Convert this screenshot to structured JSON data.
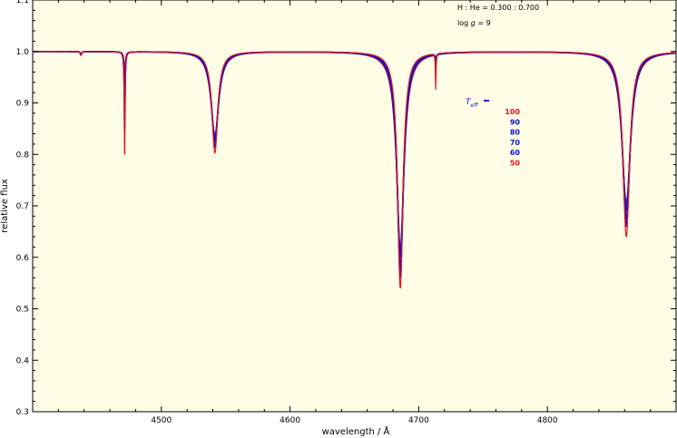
{
  "chart_data": {
    "type": "line",
    "title": "",
    "xlabel": "wavelength / Å",
    "ylabel": "relative flux",
    "xlim": [
      4400,
      4900
    ],
    "ylim": [
      0.3,
      1.1
    ],
    "x_ticks": [
      4500,
      4600,
      4700,
      4800
    ],
    "y_ticks": [
      0.3,
      0.4,
      0.5,
      0.6,
      0.7,
      0.8,
      0.9,
      1.0,
      1.1
    ],
    "x_tick_labels": [
      "4500",
      "4600",
      "4700",
      "4800"
    ],
    "y_tick_labels": [
      "0.3",
      "0.4",
      "0.5",
      "0.6",
      "0.7",
      "0.8",
      "0.9",
      "1.0",
      "1.1"
    ],
    "background_color": "#fffde6",
    "grid": false,
    "annotations": [
      {
        "text": "H : He = 0.300 : 0.700"
      },
      {
        "text": "log g = 9",
        "parts": [
          "log ",
          "g",
          " = 9"
        ]
      }
    ],
    "legend": {
      "placement": "right-middle",
      "title": "T",
      "title_subscript": "eff",
      "entries": [
        "100",
        "90",
        "80",
        "70",
        "60",
        "50"
      ],
      "colors": [
        "#e8121b",
        "#0a18c8",
        "#0a18c8",
        "#0a18c8",
        "#0a18c8",
        "#e8121b"
      ]
    },
    "lines": [
      {
        "center": 4437.5,
        "depth": 0.007,
        "width": 0.5
      },
      {
        "center": 4471.5,
        "depth": [
          0.215,
          0.16,
          0.1,
          0.08,
          0.07,
          0.035
        ],
        "width": [
          0.35,
          0.4,
          0.45,
          0.5,
          0.55,
          0.6
        ]
      },
      {
        "center": 4541.6,
        "depth": [
          0.197,
          0.185,
          0.175,
          0.17,
          0.165,
          0.16
        ],
        "width": [
          2.8,
          3.0,
          3.2,
          3.4,
          3.6,
          3.9
        ]
      },
      {
        "center": 4685.7,
        "depth": [
          0.46,
          0.44,
          0.42,
          0.4,
          0.385,
          0.38
        ],
        "width": [
          2.6,
          2.8,
          3.0,
          3.2,
          3.4,
          3.7
        ]
      },
      {
        "center": 4713.2,
        "depth": [
          0.07,
          0.025,
          0.02,
          0.015,
          0.01,
          0.008
        ],
        "width": [
          0.3,
          0.35,
          0.4,
          0.45,
          0.5,
          0.55
        ]
      },
      {
        "center": 4861.3,
        "depth": [
          0.36,
          0.34,
          0.325,
          0.31,
          0.3,
          0.29
        ],
        "width": [
          3.2,
          3.4,
          3.6,
          3.8,
          4.0,
          4.3
        ]
      }
    ],
    "series": [
      {
        "name": "100",
        "color": "#e8121b"
      },
      {
        "name": "90",
        "color": "#0a18c8"
      },
      {
        "name": "80",
        "color": "#0a18c8"
      },
      {
        "name": "70",
        "color": "#0a18c8"
      },
      {
        "name": "60",
        "color": "#0a18c8"
      },
      {
        "name": "50",
        "color": "#e8121b"
      }
    ]
  }
}
